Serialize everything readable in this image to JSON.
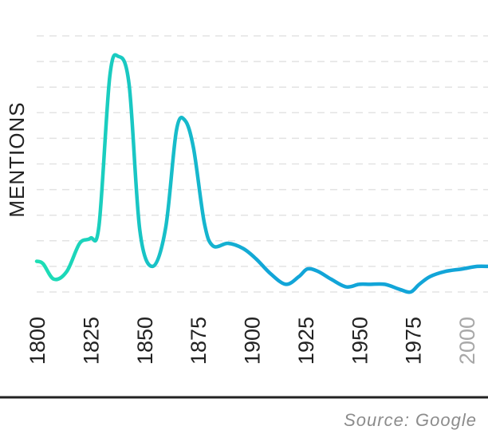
{
  "chart_data": {
    "type": "line",
    "title": "",
    "xlabel": "",
    "ylabel": "MENTIONS",
    "x_ticks": [
      "1800",
      "1825",
      "1850",
      "1875",
      "1900",
      "1925",
      "1950",
      "1975",
      "2000"
    ],
    "muted_ticks": [
      "2000"
    ],
    "xlim": [
      1800,
      2010
    ],
    "ylim": [
      0,
      10
    ],
    "grid": "horizontal dashed",
    "y_tick_labels": false,
    "colors": {
      "start": "#1ee0b4",
      "end": "#12a5d8",
      "grid": "#e3e3e3",
      "baseline": "#222222",
      "muted_tick": "#a8a8a8"
    },
    "series": [
      {
        "x": [
          1800,
          1803,
          1808,
          1814,
          1820,
          1825,
          1829,
          1834,
          1838,
          1843,
          1848,
          1854,
          1860,
          1865,
          1869,
          1873,
          1878,
          1882,
          1889,
          1896,
          1902,
          1909,
          1916,
          1922,
          1926,
          1931,
          1937,
          1944,
          1950,
          1955,
          1962,
          1969,
          1974,
          1978,
          1983,
          1990,
          1998,
          2005,
          2010
        ],
        "y": [
          1.2,
          1.1,
          0.5,
          0.8,
          1.9,
          2.1,
          2.6,
          8.4,
          9.2,
          8.1,
          2.4,
          1.0,
          2.5,
          6.3,
          6.7,
          5.6,
          2.7,
          1.8,
          1.9,
          1.7,
          1.3,
          0.7,
          0.3,
          0.6,
          0.9,
          0.8,
          0.5,
          0.2,
          0.3,
          0.3,
          0.3,
          0.1,
          0.0,
          0.3,
          0.6,
          0.8,
          0.9,
          1.0,
          1.0
        ]
      }
    ]
  },
  "source": "Source: Google"
}
